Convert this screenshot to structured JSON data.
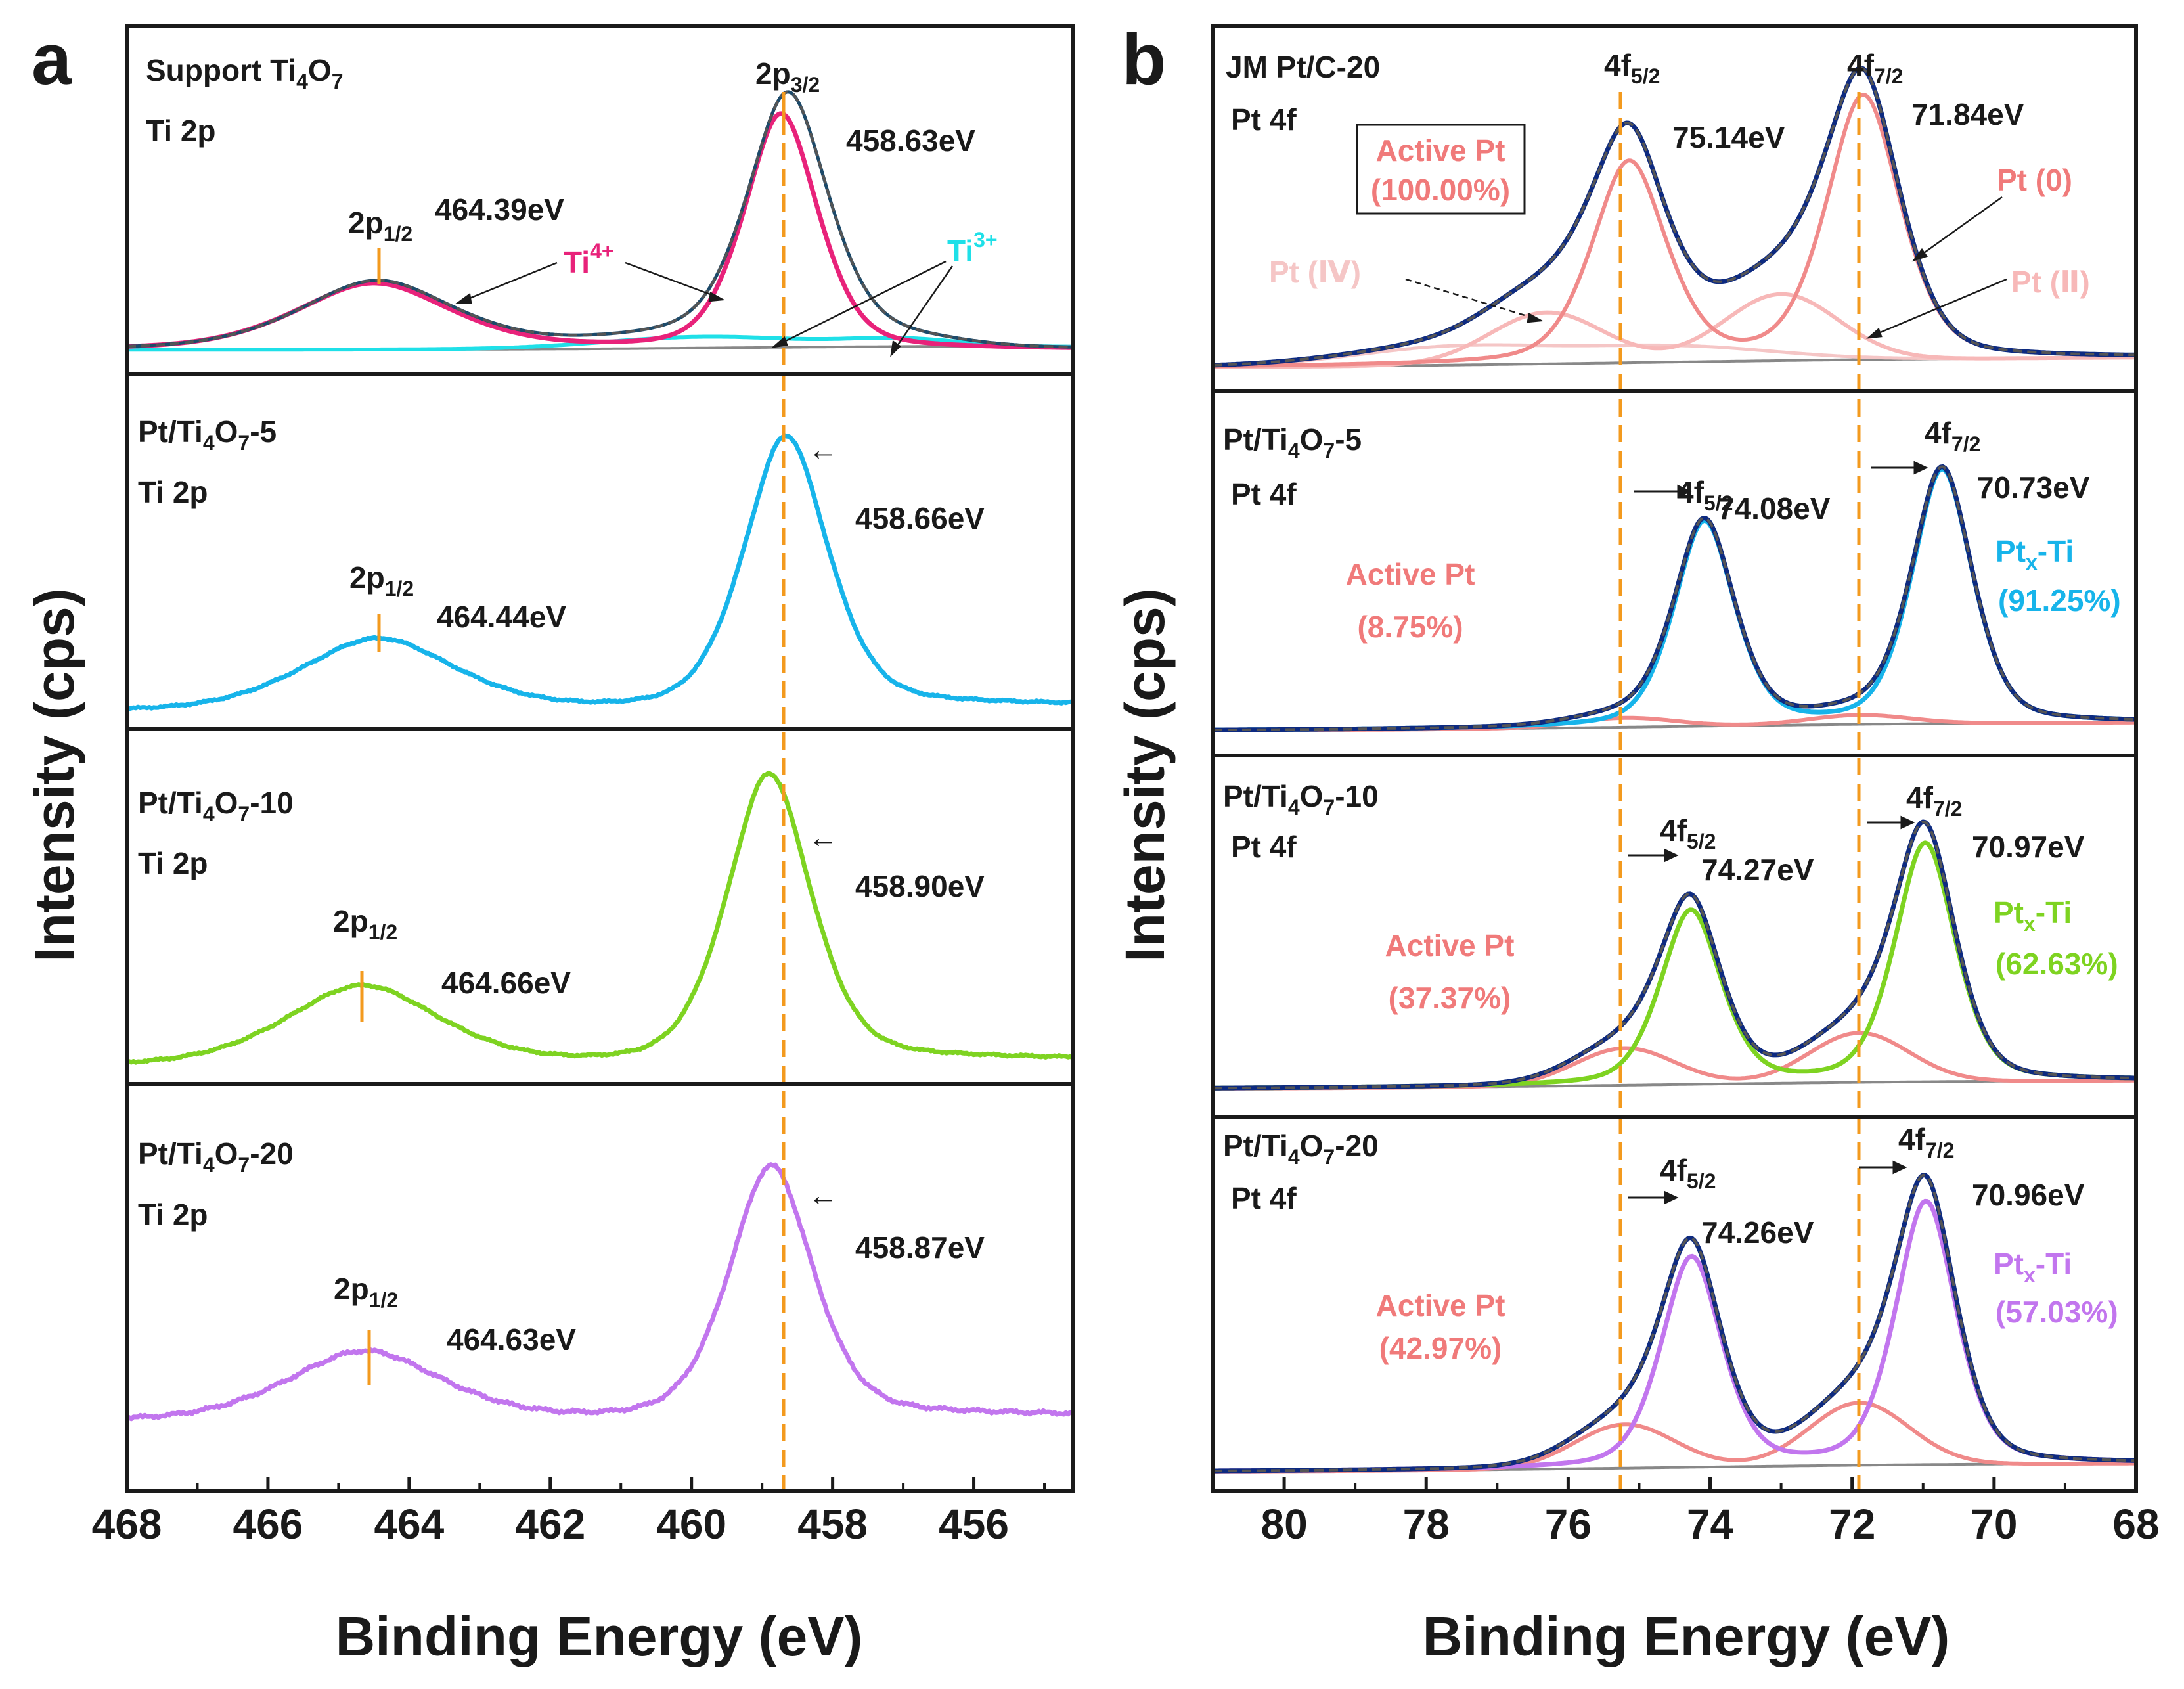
{
  "panel_a": {
    "letter": "a",
    "ylabel": "Intensity (cps)",
    "xlabel": "Binding Energy (eV)",
    "xlim": [
      468,
      454.6
    ],
    "xticks": [
      "468",
      "466",
      "464",
      "462",
      "460",
      "458",
      "456"
    ],
    "xtick_values": [
      468,
      466,
      464,
      462,
      460,
      458,
      456
    ],
    "ref_line_energy": 458.63
  },
  "panel_b": {
    "letter": "b",
    "ylabel": "Intensity (cps)",
    "xlabel": "Binding Energy (eV)",
    "xlim": [
      81,
      68
    ],
    "xticks": [
      "80",
      "78",
      "76",
      "74",
      "72",
      "70",
      "68"
    ],
    "xtick_values": [
      80,
      78,
      76,
      74,
      72,
      70,
      68
    ],
    "ref_line_energies": [
      75.14,
      71.84
    ]
  },
  "a1": {
    "title": "Support Ti4O7",
    "t_pre": "Support Ti",
    "t_s1": "4",
    "t_mid": "O",
    "t_s2": "7",
    "t_post": "",
    "subtitle": "Ti 2p",
    "p32_main": "2p",
    "p32_sub": "3/2",
    "p12_main": "2p",
    "p12_sub": "1/2",
    "v32": "458.63eV",
    "v12": "464.39eV",
    "ti4_main": "Ti",
    "ti4_sup": "4+",
    "ti3_main": "Ti",
    "ti3_sup": "3+"
  },
  "a2": {
    "title": "Pt/Ti4O7-5",
    "t_pre": "Pt/Ti",
    "t_s1": "4",
    "t_mid": "O",
    "t_s2": "7",
    "t_post": "-5",
    "subtitle": "Ti 2p",
    "p12_main": "2p",
    "p12_sub": "1/2",
    "v32": "458.66eV",
    "v12": "464.44eV",
    "shift": "←"
  },
  "a3": {
    "title": "Pt/Ti4O7-10",
    "t_pre": "Pt/Ti",
    "t_s1": "4",
    "t_mid": "O",
    "t_s2": "7",
    "t_post": "-10",
    "subtitle": "Ti 2p",
    "p12_main": "2p",
    "p12_sub": "1/2",
    "v32": "458.90eV",
    "v12": "464.66eV",
    "shift": "←"
  },
  "a4": {
    "title": "Pt/Ti4O7-20",
    "t_pre": "Pt/Ti",
    "t_s1": "4",
    "t_mid": "O",
    "t_s2": "7",
    "t_post": "-20",
    "subtitle": "Ti 2p",
    "p12_main": "2p",
    "p12_sub": "1/2",
    "v32": "458.87eV",
    "v12": "464.63eV",
    "shift": "←"
  },
  "b1": {
    "title": "JM Pt/C-20",
    "subtitle": "Pt 4f",
    "f52_main": "4f",
    "f52_sub": "5/2",
    "f72_main": "4f",
    "f72_sub": "7/2",
    "v52": "75.14eV",
    "v72": "71.84eV",
    "active_label": "Active Pt",
    "active_pct": "(100.00%)",
    "pt0": "Pt (0)",
    "pt4": "Pt (Ⅳ)",
    "pt2": "Pt (Ⅱ)"
  },
  "b2": {
    "title": "Pt/Ti4O7-5",
    "t_pre": "Pt/Ti",
    "t_s1": "4",
    "t_mid": "O",
    "t_s2": "7",
    "t_post": "-5",
    "subtitle": "Pt 4f",
    "f52_main": "4f",
    "f52_sub": "5/2",
    "f72_main": "4f",
    "f72_sub": "7/2",
    "v52": "74.08eV",
    "v72": "70.73eV",
    "active_label": "Active Pt",
    "active_pct": "(8.75%)",
    "ptx_main": "Pt",
    "ptx_sub": "x",
    "ptx_post": "-Ti",
    "ptx_pct": "(91.25%)"
  },
  "b3": {
    "title": "Pt/Ti4O7-10",
    "t_pre": "Pt/Ti",
    "t_s1": "4",
    "t_mid": "O",
    "t_s2": "7",
    "t_post": "-10",
    "subtitle": "Pt 4f",
    "f52_main": "4f",
    "f52_sub": "5/2",
    "f72_main": "4f",
    "f72_sub": "7/2",
    "v52": "74.27eV",
    "v72": "70.97eV",
    "active_label": "Active Pt",
    "active_pct": "(37.37%)",
    "ptx_main": "Pt",
    "ptx_sub": "x",
    "ptx_post": "-Ti",
    "ptx_pct": "(62.63%)"
  },
  "b4": {
    "title": "Pt/Ti4O7-20",
    "t_pre": "Pt/Ti",
    "t_s1": "4",
    "t_mid": "O",
    "t_s2": "7",
    "t_post": "-20",
    "subtitle": "Pt 4f",
    "f52_main": "4f",
    "f52_sub": "5/2",
    "f72_main": "4f",
    "f72_sub": "7/2",
    "v52": "74.26eV",
    "v72": "70.96eV",
    "active_label": "Active Pt",
    "active_pct": "(42.97%)",
    "ptx_main": "Pt",
    "ptx_sub": "x",
    "ptx_post": "-Ti",
    "ptx_pct": "(57.03%)"
  },
  "colors": {
    "frame": "#1a1a1a",
    "ref_line": "#f39a1e",
    "ti4": "#e8227a",
    "ti3": "#1fe0e8",
    "envelope": "#0d2a80",
    "envelope_a1": "#1c4a6a",
    "raw": "#555555",
    "background": "#888888",
    "active_pt": "#f08a8a",
    "pt2": "#f7b8b8",
    "pt4": "#f5c6c6",
    "active_text": "#f07a7a",
    "sample5": "#17b4ea",
    "sample10": "#7ed321",
    "sample20": "#c276ee"
  },
  "chart_data": [
    {
      "type": "line",
      "panel": "a",
      "title": "Support Ti4O7 Ti 2p",
      "xlabel": "Binding Energy (eV)",
      "ylabel": "Intensity (cps)",
      "xlim": [
        468,
        454.6
      ],
      "peaks": [
        {
          "label": "Ti 2p3/2",
          "energy": 458.63,
          "relative_intensity": 1.0
        },
        {
          "label": "Ti 2p1/2",
          "energy": 464.39,
          "relative_intensity": 0.27
        }
      ],
      "series": [
        {
          "name": "Ti4+ 2p3/2 component",
          "center": 458.73,
          "relative_height": 0.93
        },
        {
          "name": "Ti4+ 2p1/2 component",
          "center": 464.5,
          "relative_height": 0.26
        },
        {
          "name": "Ti3+ component",
          "center": 459.8,
          "relative_height": 0.045
        },
        {
          "name": "Ti3+ component",
          "center": 457.0,
          "relative_height": 0.03
        },
        {
          "name": "Envelope"
        },
        {
          "name": "Raw data"
        },
        {
          "name": "Background"
        }
      ]
    },
    {
      "type": "line",
      "panel": "a",
      "title": "Pt/Ti4O7-5 Ti 2p",
      "xlim": [
        468,
        454.6
      ],
      "peaks": [
        {
          "label": "Ti 2p3/2",
          "energy": 458.66,
          "relative_intensity": 1.0
        },
        {
          "label": "Ti 2p1/2",
          "energy": 464.44,
          "relative_intensity": 0.27
        }
      ]
    },
    {
      "type": "line",
      "panel": "a",
      "title": "Pt/Ti4O7-10 Ti 2p",
      "xlim": [
        468,
        454.6
      ],
      "peaks": [
        {
          "label": "Ti 2p3/2",
          "energy": 458.9,
          "relative_intensity": 1.0
        },
        {
          "label": "Ti 2p1/2",
          "energy": 464.66,
          "relative_intensity": 0.28
        }
      ]
    },
    {
      "type": "line",
      "panel": "a",
      "title": "Pt/Ti4O7-20 Ti 2p",
      "xlim": [
        468,
        454.6
      ],
      "peaks": [
        {
          "label": "Ti 2p3/2",
          "energy": 458.87,
          "relative_intensity": 1.0
        },
        {
          "label": "Ti 2p1/2",
          "energy": 464.63,
          "relative_intensity": 0.28
        }
      ]
    },
    {
      "type": "line",
      "panel": "b",
      "title": "JM Pt/C-20 Pt 4f",
      "xlabel": "Binding Energy (eV)",
      "ylabel": "Intensity (cps)",
      "xlim": [
        81,
        68
      ],
      "peaks": [
        {
          "label": "4f5/2",
          "energy": 75.14
        },
        {
          "label": "4f7/2",
          "energy": 71.84
        }
      ],
      "series": [
        {
          "name": "Pt (0) 4f7/2",
          "center": 71.84,
          "relative_height": 0.87
        },
        {
          "name": "Pt (0) 4f5/2",
          "center": 75.14,
          "relative_height": 0.66
        },
        {
          "name": "Pt (II) 4f7/2",
          "center": 73.0,
          "relative_height": 0.22
        },
        {
          "name": "Pt (II) 4f5/2",
          "center": 76.3,
          "relative_height": 0.17
        },
        {
          "name": "Pt (IV) 4f7/2",
          "center": 74.5,
          "relative_height": 0.06
        },
        {
          "name": "Pt (IV) 4f5/2",
          "center": 77.6,
          "relative_height": 0.05
        }
      ],
      "composition": [
        {
          "name": "Active Pt",
          "percent": 100.0
        }
      ]
    },
    {
      "type": "line",
      "panel": "b",
      "title": "Pt/Ti4O7-5 Pt 4f",
      "xlim": [
        81,
        68
      ],
      "peaks": [
        {
          "label": "4f5/2",
          "energy": 74.08
        },
        {
          "label": "4f7/2",
          "energy": 70.73
        }
      ],
      "composition": [
        {
          "name": "Active Pt",
          "percent": 8.75
        },
        {
          "name": "Ptx-Ti",
          "percent": 91.25
        }
      ]
    },
    {
      "type": "line",
      "panel": "b",
      "title": "Pt/Ti4O7-10 Pt 4f",
      "xlim": [
        81,
        68
      ],
      "peaks": [
        {
          "label": "4f5/2",
          "energy": 74.27
        },
        {
          "label": "4f7/2",
          "energy": 70.97
        }
      ],
      "composition": [
        {
          "name": "Active Pt",
          "percent": 37.37
        },
        {
          "name": "Ptx-Ti",
          "percent": 62.63
        }
      ]
    },
    {
      "type": "line",
      "panel": "b",
      "title": "Pt/Ti4O7-20 Pt 4f",
      "xlim": [
        81,
        68
      ],
      "peaks": [
        {
          "label": "4f5/2",
          "energy": 74.26
        },
        {
          "label": "4f7/2",
          "energy": 70.96
        }
      ],
      "composition": [
        {
          "name": "Active Pt",
          "percent": 42.97
        },
        {
          "name": "Ptx-Ti",
          "percent": 57.03
        }
      ]
    }
  ]
}
